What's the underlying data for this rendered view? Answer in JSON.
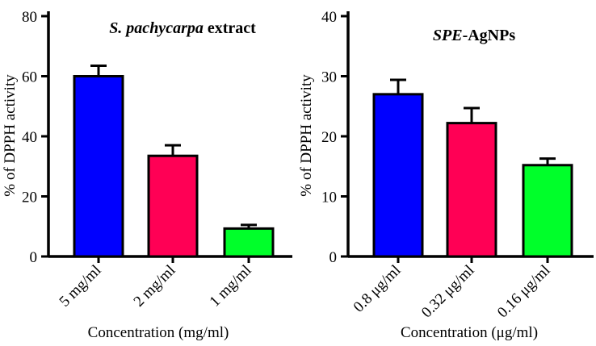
{
  "chart_data": [
    {
      "type": "bar",
      "title_italic": "S. pachycarpa",
      "title_rest": " extract",
      "categories": [
        "5 mg/ml",
        "2 mg/ml",
        "1 mg/ml"
      ],
      "values": [
        60,
        33.5,
        9.3
      ],
      "errors": [
        3.5,
        3.5,
        1.2
      ],
      "colors": [
        "#0000ff",
        "#ff0055",
        "#00ff2a"
      ],
      "ylabel": "% of DPPH activity",
      "xlabel": "Concentration (mg/ml)",
      "ylim": [
        0,
        80
      ],
      "yticks": [
        "0",
        "20",
        "40",
        "60",
        "80"
      ]
    },
    {
      "type": "bar",
      "title_italic": "SPE",
      "title_rest": "-AgNPs",
      "categories": [
        "0.8 μg/ml",
        "0.32 μg/ml",
        "0.16 μg/ml"
      ],
      "values": [
        27,
        22.2,
        15.2
      ],
      "errors": [
        2.4,
        2.5,
        1.1
      ],
      "colors": [
        "#0000ff",
        "#ff0055",
        "#00ff2a"
      ],
      "ylabel": "% of DPPH activity",
      "xlabel": "Concentration (μg/ml)",
      "ylim": [
        0,
        40
      ],
      "yticks": [
        "0",
        "10",
        "20",
        "30",
        "40"
      ]
    }
  ]
}
